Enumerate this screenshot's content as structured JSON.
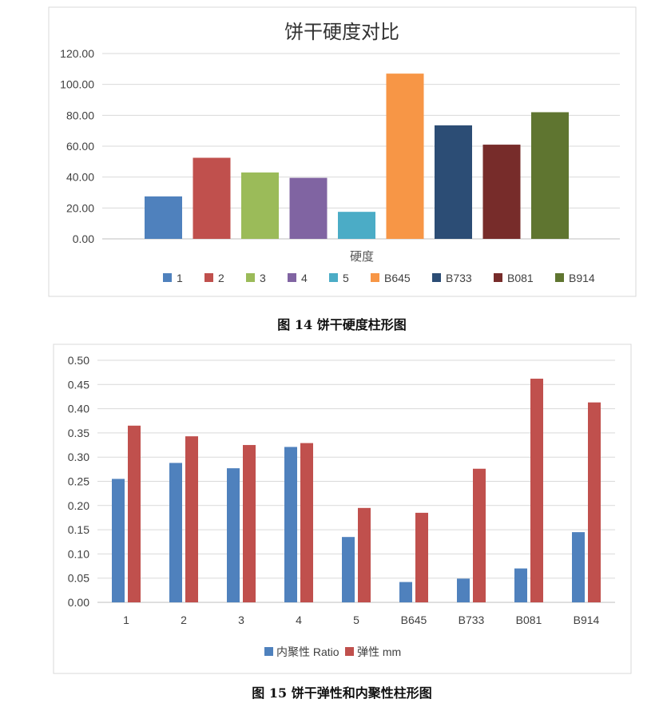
{
  "charts": [
    {
      "caption": "图 14  饼干硬度柱形图"
    },
    {
      "caption": "图 15  饼干弹性和内聚性柱形图"
    }
  ],
  "chart_data": [
    {
      "type": "bar",
      "title": "饼干硬度对比",
      "xlabel": "硬度",
      "ylabel": "",
      "ylim": [
        0,
        120
      ],
      "yticks": [
        "0.00",
        "20.00",
        "40.00",
        "60.00",
        "80.00",
        "100.00",
        "120.00"
      ],
      "grid": true,
      "legend_position": "bottom",
      "series": [
        {
          "name": "1",
          "value": 27.5,
          "color": "#4f81bd"
        },
        {
          "name": "2",
          "value": 52.5,
          "color": "#c0504d"
        },
        {
          "name": "3",
          "value": 43,
          "color": "#9bbb59"
        },
        {
          "name": "4",
          "value": 39.5,
          "color": "#8064a2"
        },
        {
          "name": "5",
          "value": 17.5,
          "color": "#4bacc6"
        },
        {
          "name": "B645",
          "value": 107,
          "color": "#f79646"
        },
        {
          "name": "B733",
          "value": 73.5,
          "color": "#2c4d75"
        },
        {
          "name": "B081",
          "value": 61,
          "color": "#772c2a"
        },
        {
          "name": "B914",
          "value": 82,
          "color": "#5f7530"
        }
      ]
    },
    {
      "type": "bar",
      "title": "",
      "xlabel": "",
      "ylabel": "",
      "ylim": [
        0,
        0.5
      ],
      "yticks": [
        "0.00",
        "0.05",
        "0.10",
        "0.15",
        "0.20",
        "0.25",
        "0.30",
        "0.35",
        "0.40",
        "0.45",
        "0.50"
      ],
      "grid": true,
      "legend_position": "bottom",
      "categories": [
        "1",
        "2",
        "3",
        "4",
        "5",
        "B645",
        "B733",
        "B081",
        "B914"
      ],
      "series": [
        {
          "name": "内聚性  Ratio",
          "color": "#4f81bd",
          "values": [
            0.255,
            0.288,
            0.277,
            0.321,
            0.135,
            0.042,
            0.049,
            0.07,
            0.145
          ]
        },
        {
          "name": "弹性  mm",
          "color": "#c0504d",
          "values": [
            0.365,
            0.343,
            0.325,
            0.329,
            0.195,
            0.185,
            0.276,
            0.462,
            0.413
          ]
        }
      ]
    }
  ]
}
